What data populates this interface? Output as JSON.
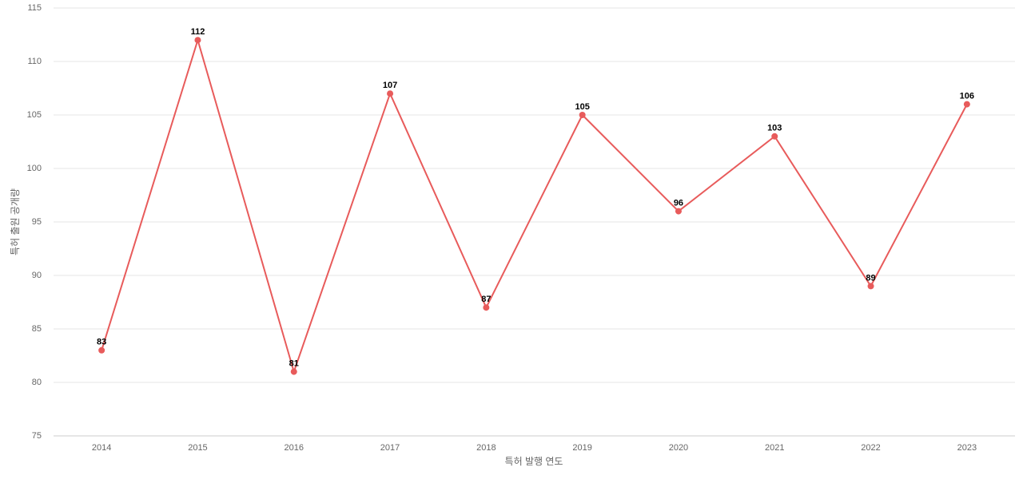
{
  "chart_data": {
    "type": "line",
    "x_label": "특허 발행 연도",
    "y_label": "특허 출원 공개량",
    "categories": [
      "2014",
      "2015",
      "2016",
      "2017",
      "2018",
      "2019",
      "2020",
      "2021",
      "2022",
      "2023"
    ],
    "series": [
      {
        "name": "특허 출원 공개량",
        "color": "#e85b5b",
        "values": [
          83,
          112,
          81,
          107,
          87,
          105,
          96,
          103,
          89,
          106
        ]
      }
    ],
    "ylim": [
      75,
      115
    ],
    "yticks": [
      75,
      80,
      85,
      90,
      95,
      100,
      105,
      110,
      115
    ],
    "grid": true
  }
}
